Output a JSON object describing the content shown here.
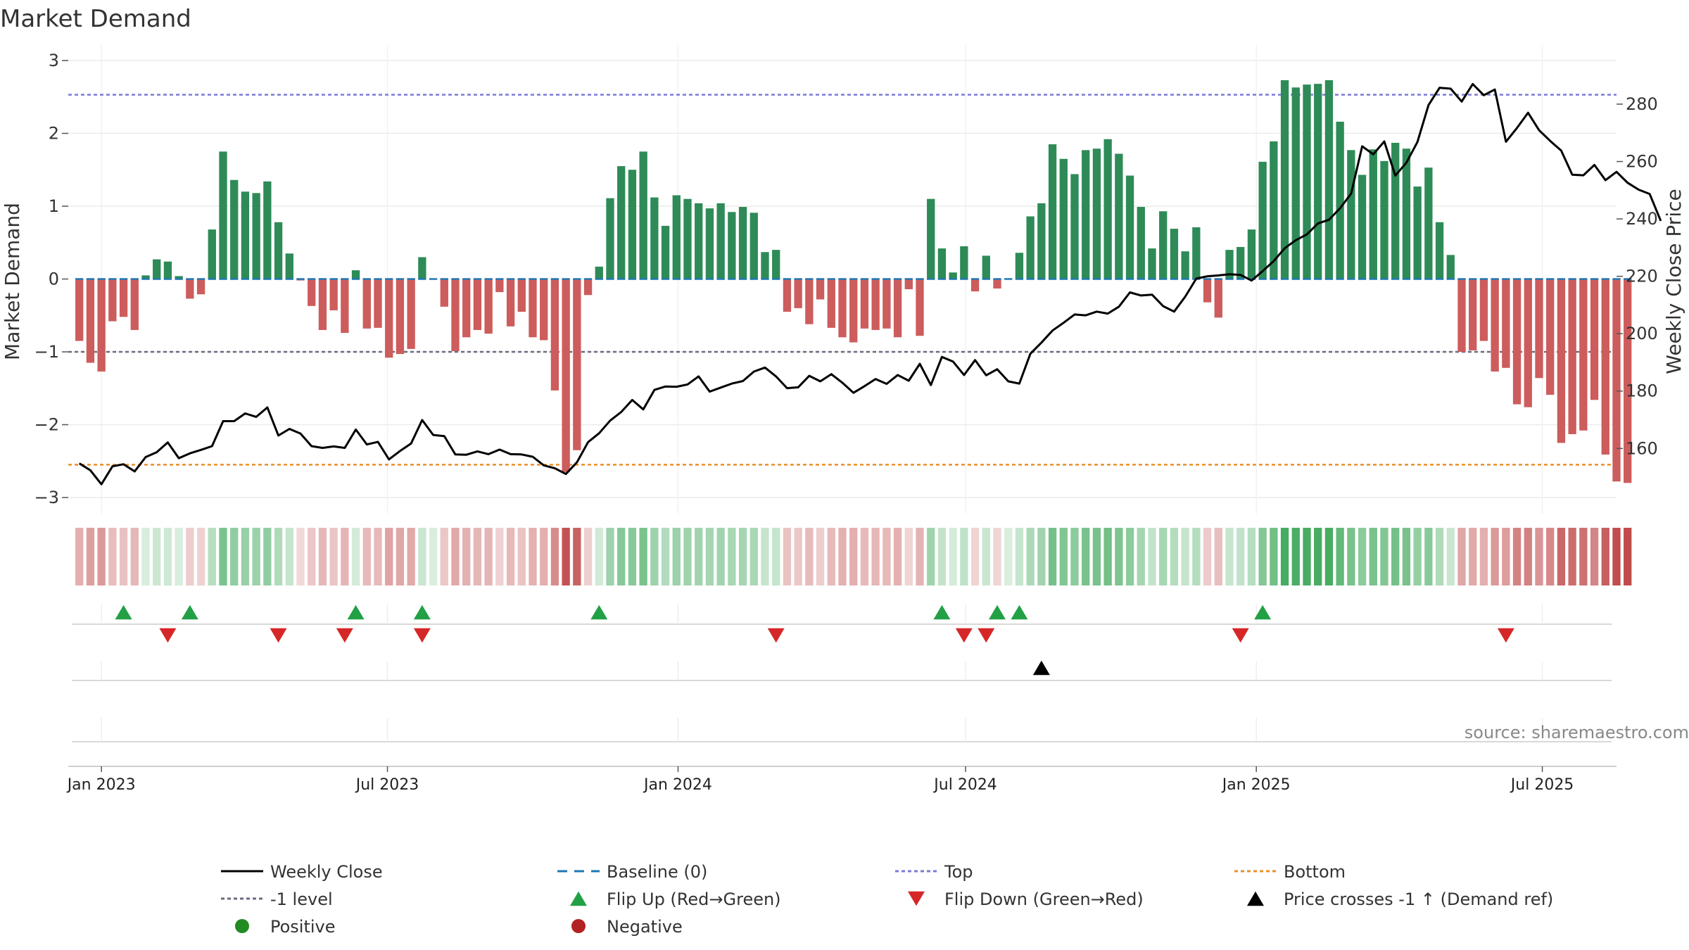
{
  "chart_data": {
    "type": "bar+line",
    "title": "Market Demand",
    "ylabel_left": "Market Demand",
    "ylabel_right": "Weekly Close Price",
    "yticks_left": [
      "3",
      "2",
      "1",
      "0",
      "−1",
      "−2",
      "−3"
    ],
    "ylim_left": [
      -3,
      3
    ],
    "yticks_right": [
      "280",
      "260",
      "240",
      "220",
      "200",
      "180",
      "160"
    ],
    "ylim_right": [
      142.9,
      295.2
    ],
    "x_range_weeks": [
      -3,
      137
    ],
    "x_ticks": [
      {
        "label": "Jan 2023",
        "week": 0
      },
      {
        "label": "Jul 2023",
        "week": 25.86
      },
      {
        "label": "Jan 2024",
        "week": 52.14
      },
      {
        "label": "Jul 2024",
        "week": 78.14
      },
      {
        "label": "Jan 2025",
        "week": 104.43
      },
      {
        "label": "Jul 2025",
        "week": 130.29
      }
    ],
    "start_week": -2,
    "demand": [
      -0.85,
      -1.15,
      -1.27,
      -0.58,
      -0.52,
      -0.7,
      0.05,
      0.27,
      0.24,
      0.04,
      -0.27,
      -0.21,
      0.68,
      1.75,
      1.36,
      1.2,
      1.18,
      1.34,
      0.78,
      0.35,
      -0.02,
      -0.37,
      -0.7,
      -0.43,
      -0.74,
      0.12,
      -0.68,
      -0.67,
      -1.08,
      -1.03,
      -0.96,
      0.3,
      0.0,
      -0.38,
      -0.99,
      -0.8,
      -0.7,
      -0.75,
      -0.18,
      -0.65,
      -0.45,
      -0.8,
      -0.84,
      -1.53,
      -2.65,
      -2.35,
      -0.22,
      0.17,
      1.11,
      1.55,
      1.5,
      1.75,
      1.12,
      0.73,
      1.15,
      1.1,
      1.04,
      0.97,
      1.04,
      0.92,
      0.99,
      0.91,
      0.37,
      0.4,
      -0.45,
      -0.4,
      -0.62,
      -0.28,
      -0.67,
      -0.8,
      -0.87,
      -0.68,
      -0.7,
      -0.68,
      -0.8,
      -0.14,
      -0.78,
      1.1,
      0.42,
      0.09,
      0.45,
      -0.17,
      0.32,
      -0.13,
      0.0,
      0.36,
      0.86,
      1.04,
      1.85,
      1.65,
      1.44,
      1.77,
      1.79,
      1.92,
      1.72,
      1.42,
      0.99,
      0.42,
      0.93,
      0.69,
      0.38,
      0.71,
      -0.32,
      -0.53,
      0.4,
      0.44,
      0.68,
      1.61,
      1.89,
      2.73,
      2.63,
      2.67,
      2.68,
      2.73,
      2.16,
      1.77,
      1.43,
      1.78,
      1.62,
      1.87,
      1.79,
      1.27,
      1.53,
      0.78,
      0.33,
      -1.0,
      -0.98,
      -0.85,
      -1.27,
      -1.22,
      -1.72,
      -1.76,
      -1.36,
      -1.59,
      -2.25,
      -2.13,
      -2.08,
      -1.66,
      -2.41,
      -2.78,
      -2.8
    ],
    "price": [
      154.8,
      152.4,
      147.5,
      153.8,
      154.5,
      152,
      157,
      158.7,
      162.1,
      156.6,
      158.3,
      159.5,
      160.8,
      169.5,
      169.5,
      172.2,
      171,
      174.3,
      164.5,
      166.8,
      165.2,
      160.8,
      160.2,
      160.7,
      160.2,
      166.6,
      161.4,
      162.3,
      156.2,
      159.1,
      161.7,
      169.9,
      164.7,
      164.3,
      157.9,
      157.8,
      159,
      158,
      159.6,
      158,
      157.9,
      157.1,
      154.1,
      153.1,
      151.1,
      155.2,
      162.2,
      165.3,
      169.7,
      172.7,
      176.9,
      173.6,
      180.4,
      181.6,
      181.5,
      182.3,
      185.1,
      179.8,
      181.2,
      182.6,
      183.5,
      186.8,
      188.2,
      185.1,
      181,
      181.3,
      185.3,
      183.4,
      185.9,
      182.9,
      179.4,
      181.7,
      184.2,
      182.5,
      185.6,
      183.6,
      189.5,
      182.1,
      191.9,
      190.3,
      185.6,
      190.8,
      185.5,
      187.6,
      183.4,
      182.6,
      193,
      196.9,
      201.1,
      203.8,
      206.7,
      206.4,
      207.7,
      207,
      209.4,
      214.4,
      213.3,
      213.6,
      209.6,
      207.7,
      212.9,
      219.2,
      220,
      220.3,
      220.7,
      220.5,
      218.5,
      221.8,
      225.3,
      229.8,
      232.6,
      234.6,
      238.4,
      239.7,
      243.7,
      248.8,
      265.3,
      262.5,
      267,
      255.1,
      259.6,
      266.8,
      279.7,
      285.7,
      285.4,
      280.9,
      287,
      283.1,
      285.1,
      266.9,
      271.7,
      277,
      270.9,
      267.2,
      263.8,
      255.4,
      255.2,
      258.8,
      253.5,
      256.4,
      252.6,
      250.2,
      248.7,
      239.3
    ],
    "flip_up_weeks": [
      2,
      8,
      23,
      29,
      45,
      76,
      81,
      83,
      105
    ],
    "flip_down_weeks": [
      6,
      16,
      22,
      29,
      61,
      78,
      80,
      103,
      127
    ],
    "price_cross_weeks": [
      85
    ],
    "levels": {
      "top": 2.53,
      "bottom": -2.55,
      "minus_one": -1,
      "baseline": 0
    },
    "legend": [
      {
        "label": "Weekly Close",
        "kind": "line"
      },
      {
        "label": "Baseline (0)",
        "kind": "dash"
      },
      {
        "label": "Top",
        "kind": "dot-blue"
      },
      {
        "label": "Bottom",
        "kind": "dot-orange"
      },
      {
        "label": "-1 level",
        "kind": "dot-gray"
      },
      {
        "label": "Flip Up (Red→Green)",
        "kind": "tri-up-green"
      },
      {
        "label": "Flip Down (Green→Red)",
        "kind": "tri-down-red"
      },
      {
        "label": "Price crosses -1 ↑ (Demand ref)",
        "kind": "tri-up-black"
      },
      {
        "label": "Positive",
        "kind": "dot-green"
      },
      {
        "label": "Negative",
        "kind": "dot-red"
      }
    ],
    "source": "source: sharemaestro.com",
    "colors": {
      "positive": "#2e8b57",
      "negative": "#cd5c5c",
      "line": "#000000",
      "baseline": "#1f77b4",
      "top": "#7b7bd6",
      "bottom": "#e8912d",
      "minus_one": "#6b6b80",
      "flip_up": "#22a045",
      "flip_down": "#d62728",
      "legend_pos": "#228b22",
      "legend_neg": "#b22222"
    }
  }
}
